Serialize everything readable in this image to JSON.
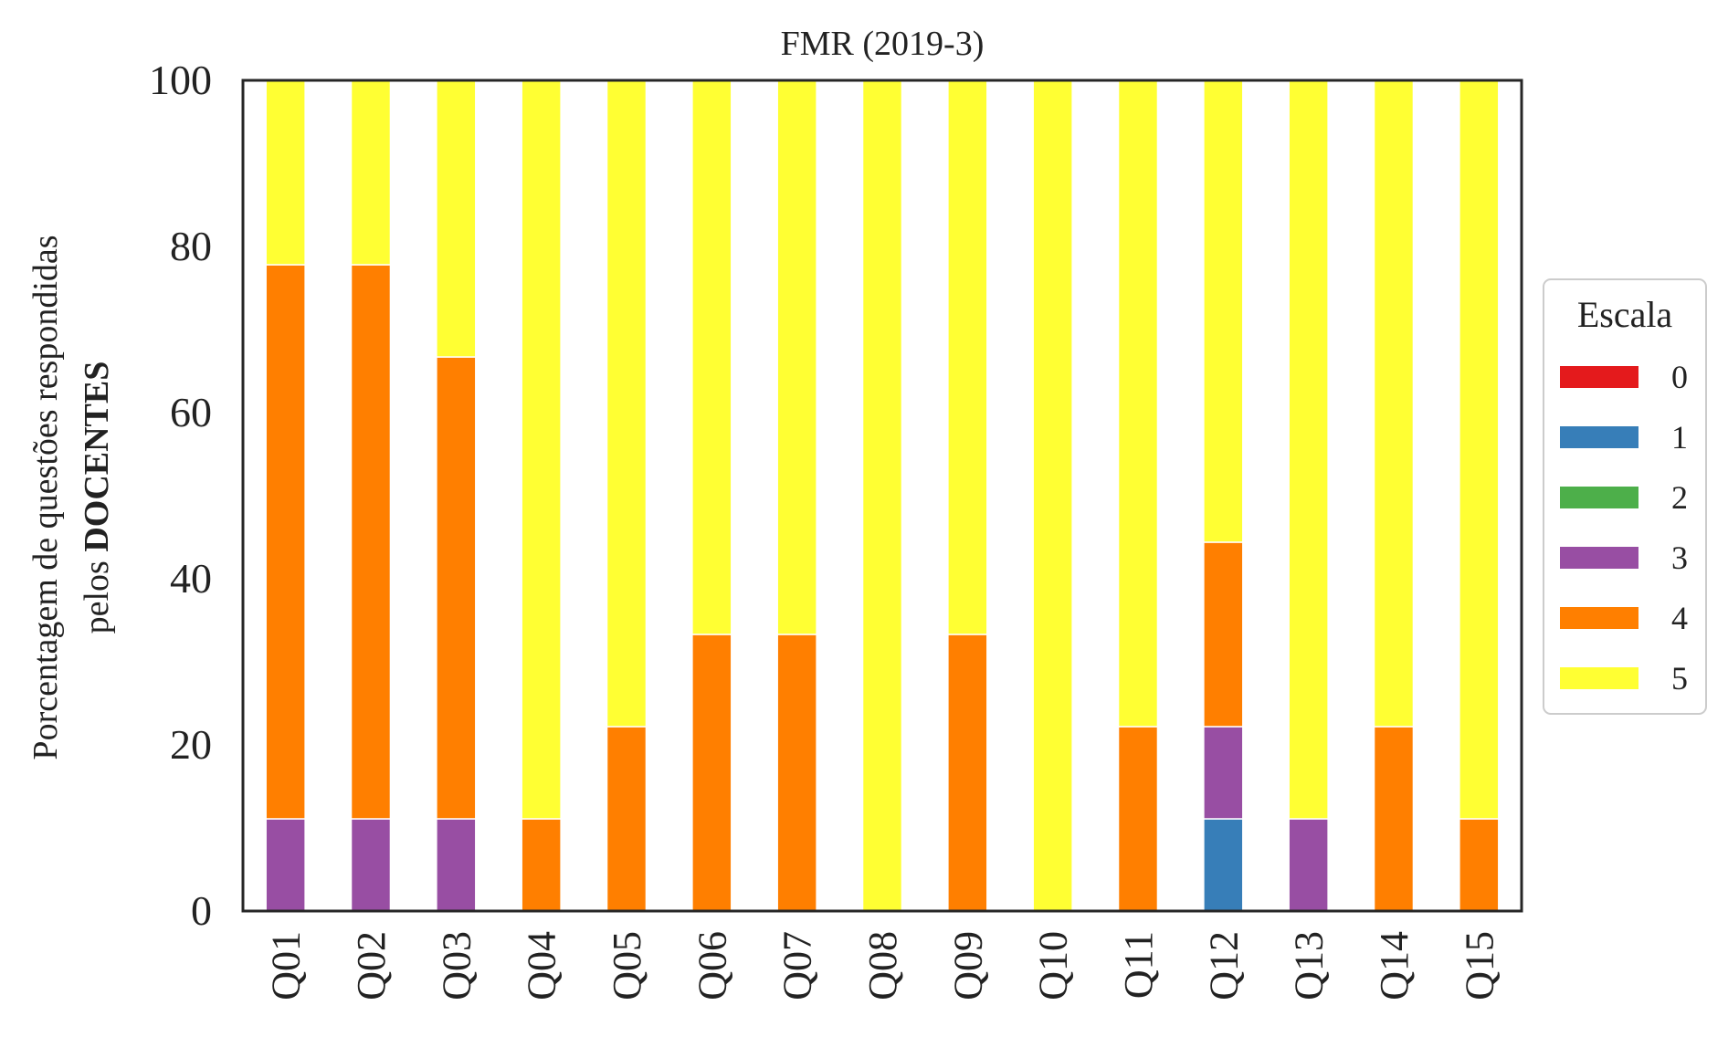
{
  "chart_data": {
    "type": "bar",
    "stacked": true,
    "title": "FMR (2019-3)",
    "ylabel_line1": "Porcentagem de questões respondidas",
    "ylabel_line2_prefix": "pelos ",
    "ylabel_line2_bold": "DOCENTES",
    "xlabel": "",
    "ylim": [
      0,
      100
    ],
    "yticks": [
      0,
      20,
      40,
      60,
      80,
      100
    ],
    "grid": false,
    "categories": [
      "Q01",
      "Q02",
      "Q03",
      "Q04",
      "Q05",
      "Q06",
      "Q07",
      "Q08",
      "Q09",
      "Q10",
      "Q11",
      "Q12",
      "Q13",
      "Q14",
      "Q15"
    ],
    "legend": {
      "title": "Escala",
      "position": "right"
    },
    "series": [
      {
        "name": "0",
        "color": "#e41a1c",
        "values": [
          0,
          0,
          0,
          0,
          0,
          0,
          0,
          0,
          0,
          0,
          0,
          0,
          0,
          0,
          0
        ]
      },
      {
        "name": "1",
        "color": "#377eb8",
        "values": [
          0,
          0,
          0,
          0,
          0,
          0,
          0,
          0,
          0,
          0,
          0,
          11.1,
          0,
          0,
          0
        ]
      },
      {
        "name": "2",
        "color": "#4daf4a",
        "values": [
          0,
          0,
          0,
          0,
          0,
          0,
          0,
          0,
          0,
          0,
          0,
          0,
          0,
          0,
          0
        ]
      },
      {
        "name": "3",
        "color": "#984ea3",
        "values": [
          11.1,
          11.1,
          11.1,
          0,
          0,
          0,
          0,
          0,
          0,
          0,
          0,
          11.1,
          11.1,
          0,
          0
        ]
      },
      {
        "name": "4",
        "color": "#ff7f00",
        "values": [
          66.7,
          66.7,
          55.6,
          11.1,
          22.2,
          33.3,
          33.3,
          0,
          33.3,
          0,
          22.2,
          22.2,
          0,
          22.2,
          11.1
        ]
      },
      {
        "name": "5",
        "color": "#ffff33",
        "values": [
          22.2,
          22.2,
          33.3,
          88.9,
          77.8,
          66.7,
          66.7,
          100,
          66.7,
          100,
          77.8,
          55.6,
          88.9,
          77.8,
          88.9
        ]
      }
    ]
  }
}
